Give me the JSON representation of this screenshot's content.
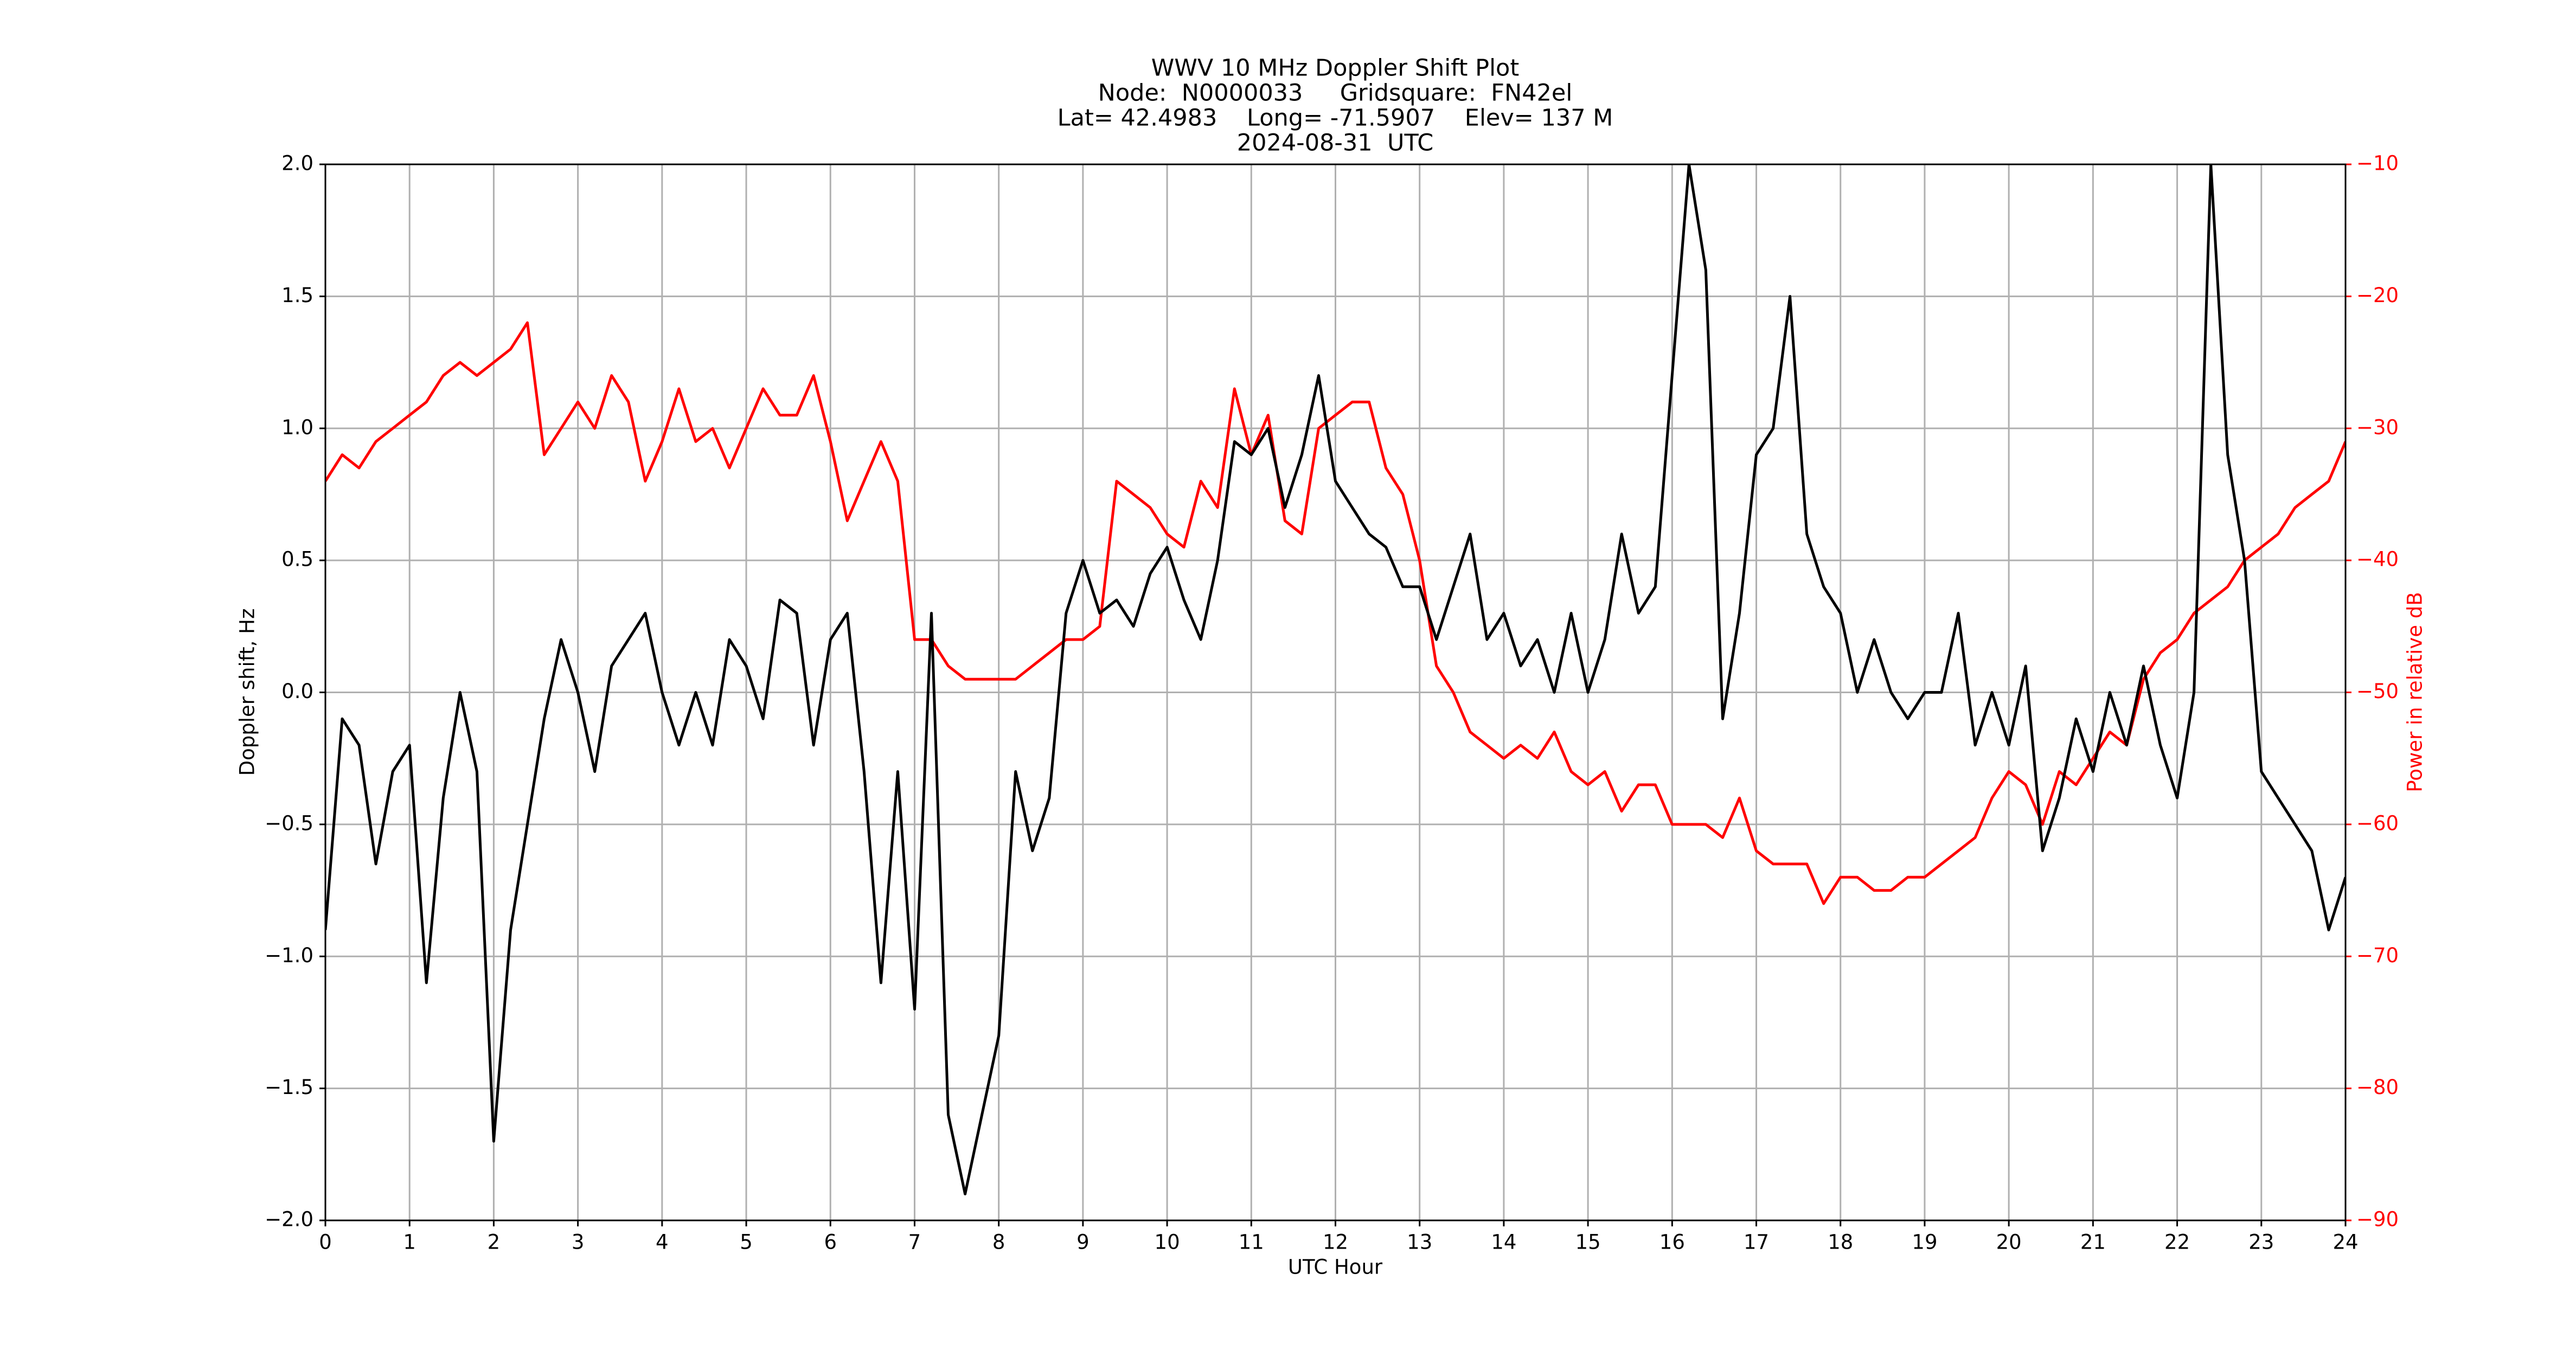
{
  "chart_data": {
    "type": "line",
    "title": [
      "WWV 10 MHz Doppler Shift Plot",
      "Node:  N0000033     Gridsquare:  FN42el",
      "Lat= 42.4983    Long= -71.5907    Elev= 137 M",
      "2024-08-31  UTC"
    ],
    "xlabel": "UTC Hour",
    "ylabel": "Doppler shift, Hz",
    "y2label": "Power in relative dB",
    "x": [
      0,
      0.2,
      0.4,
      0.6,
      0.8,
      1,
      1.2,
      1.4,
      1.6,
      1.8,
      2,
      2.2,
      2.4,
      2.6,
      2.8,
      3,
      3.2,
      3.4,
      3.6,
      3.8,
      4,
      4.2,
      4.4,
      4.6,
      4.8,
      5,
      5.2,
      5.4,
      5.6,
      5.8,
      6,
      6.2,
      6.4,
      6.6,
      6.8,
      7,
      7.2,
      7.4,
      7.6,
      7.8,
      8,
      8.2,
      8.4,
      8.6,
      8.8,
      9,
      9.2,
      9.4,
      9.6,
      9.8,
      10,
      10.2,
      10.4,
      10.6,
      10.8,
      11,
      11.2,
      11.4,
      11.6,
      11.8,
      12,
      12.2,
      12.4,
      12.6,
      12.8,
      13,
      13.2,
      13.4,
      13.6,
      13.8,
      14,
      14.2,
      14.4,
      14.6,
      14.8,
      15,
      15.2,
      15.4,
      15.6,
      15.8,
      16,
      16.2,
      16.4,
      16.6,
      16.8,
      17,
      17.2,
      17.4,
      17.6,
      17.8,
      18,
      18.2,
      18.4,
      18.6,
      18.8,
      19,
      19.2,
      19.4,
      19.6,
      19.8,
      20,
      20.2,
      20.4,
      20.6,
      20.8,
      21,
      21.2,
      21.4,
      21.6,
      21.8,
      22,
      22.2,
      22.4,
      22.6,
      22.8,
      23,
      23.2,
      23.4,
      23.6,
      23.8,
      24
    ],
    "series": [
      {
        "color": "#000000",
        "axis": "y",
        "values": [
          -0.9,
          -0.1,
          -0.2,
          -0.65,
          -0.3,
          -0.2,
          -1.1,
          -0.4,
          0,
          -0.3,
          -1.7,
          -0.9,
          -0.5,
          -0.1,
          0.2,
          0,
          -0.3,
          0.1,
          0.2,
          0.3,
          0,
          -0.2,
          0,
          -0.2,
          0.2,
          0.1,
          -0.1,
          0.35,
          0.3,
          -0.2,
          0.2,
          0.3,
          -0.3,
          -1.1,
          -0.3,
          -1.2,
          0.3,
          -1.6,
          -1.9,
          -1.6,
          -1.3,
          -0.3,
          -0.6,
          -0.4,
          0.3,
          0.5,
          0.3,
          0.35,
          0.25,
          0.45,
          0.55,
          0.35,
          0.2,
          0.5,
          0.95,
          0.9,
          1,
          0.7,
          0.9,
          1.2,
          0.8,
          0.7,
          0.6,
          0.55,
          0.4,
          0.4,
          0.2,
          0.4,
          0.6,
          0.2,
          0.3,
          0.1,
          0.2,
          0,
          0.3,
          0,
          0.2,
          0.6,
          0.3,
          0.4,
          1.2,
          2,
          1.6,
          -0.1,
          0.3,
          0.9,
          1,
          1.5,
          0.6,
          0.4,
          0.3,
          0,
          0.2,
          0,
          -0.1,
          0,
          0,
          0.3,
          -0.2,
          0,
          -0.2,
          0.1,
          -0.6,
          -0.4,
          -0.1,
          -0.3,
          0,
          -0.2,
          0.1,
          -0.2,
          -0.4,
          0,
          2,
          0.9,
          0.5,
          -0.3,
          -0.4,
          -0.5,
          -0.6,
          -0.9,
          -0.7
        ]
      },
      {
        "color": "#ff0000",
        "axis": "y2",
        "values": [
          -34,
          -32,
          -33,
          -31,
          -30,
          -29,
          -28,
          -26,
          -25,
          -26,
          -25,
          -24,
          -22,
          -32,
          -30,
          -28,
          -30,
          -26,
          -28,
          -34,
          -31,
          -27,
          -31,
          -30,
          -33,
          -30,
          -27,
          -29,
          -29,
          -26,
          -31,
          -37,
          -34,
          -31,
          -34,
          -46,
          -46,
          -48,
          -49,
          -49,
          -49,
          -49,
          -48,
          -47,
          -46,
          -46,
          -45,
          -34,
          -35,
          -36,
          -38,
          -39,
          -34,
          -36,
          -27,
          -32,
          -29,
          -37,
          -38,
          -30,
          -29,
          -28,
          -28,
          -33,
          -35,
          -40,
          -48,
          -50,
          -53,
          -54,
          -55,
          -54,
          -55,
          -53,
          -56,
          -57,
          -56,
          -59,
          -57,
          -57,
          -60,
          -60,
          -60,
          -61,
          -58,
          -62,
          -63,
          -63,
          -63,
          -66,
          -64,
          -64,
          -65,
          -65,
          -64,
          -64,
          -63,
          -62,
          -61,
          -58,
          -56,
          -57,
          -60,
          -56,
          -57,
          -55,
          -53,
          -54,
          -49,
          -47,
          -46,
          -44,
          -43,
          -42,
          -40,
          -39,
          -38,
          -36,
          -35,
          -34,
          -31
        ]
      }
    ],
    "xlim": [
      0,
      24
    ],
    "xticks": [
      0,
      1,
      2,
      3,
      4,
      5,
      6,
      7,
      8,
      9,
      10,
      11,
      12,
      13,
      14,
      15,
      16,
      17,
      18,
      19,
      20,
      21,
      22,
      23,
      24
    ],
    "ylim": [
      -2,
      2
    ],
    "yticks": [
      {
        "value": -2,
        "label": "−2.0"
      },
      {
        "value": -1.5,
        "label": "−1.5"
      },
      {
        "value": -1,
        "label": "−1.0"
      },
      {
        "value": -0.5,
        "label": "−0.5"
      },
      {
        "value": 0,
        "label": "0.0"
      },
      {
        "value": 0.5,
        "label": "0.5"
      },
      {
        "value": 1,
        "label": "1.0"
      },
      {
        "value": 1.5,
        "label": "1.5"
      },
      {
        "value": 2,
        "label": "2.0"
      }
    ],
    "y2lim": [
      -90,
      -10
    ],
    "y2ticks": [
      {
        "value": -90,
        "label": "−90"
      },
      {
        "value": -80,
        "label": "−80"
      },
      {
        "value": -70,
        "label": "−70"
      },
      {
        "value": -60,
        "label": "−60"
      },
      {
        "value": -50,
        "label": "−50"
      },
      {
        "value": -40,
        "label": "−40"
      },
      {
        "value": -30,
        "label": "−30"
      },
      {
        "value": -20,
        "label": "−20"
      },
      {
        "value": -10,
        "label": "−10"
      }
    ],
    "y2color": "#ff0000",
    "grid": true
  }
}
